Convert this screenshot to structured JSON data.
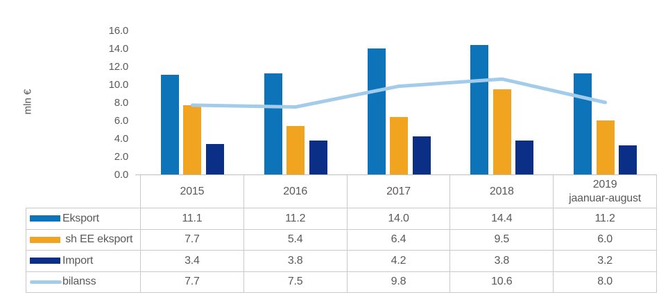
{
  "chart_data": {
    "type": "bar",
    "subtype": "grouped bars with line overlay",
    "title": "",
    "xlabel": "",
    "ylabel": "mln €",
    "ylim": [
      0,
      16
    ],
    "grid": false,
    "legend_position": "table-left",
    "y_ticks": [
      "16.0",
      "14.0",
      "12.0",
      "10.0",
      "8.0",
      "6.0",
      "4.0",
      "2.0",
      "0.0"
    ],
    "categories": [
      "2015",
      "2016",
      "2017",
      "2018",
      "2019\njaanuar-august"
    ],
    "series": [
      {
        "name": "Eksport",
        "type": "bar",
        "color": "#0e74ba",
        "values": [
          "11.1",
          "11.2",
          "14.0",
          "14.4",
          "11.2"
        ]
      },
      {
        "name": " sh EE eksport",
        "type": "bar",
        "color": "#f0a41f",
        "values": [
          "7.7",
          "5.4",
          "6.4",
          "9.5",
          "6.0"
        ]
      },
      {
        "name": "Import",
        "type": "bar",
        "color": "#0b2f87",
        "values": [
          "3.4",
          "3.8",
          "4.2",
          "3.8",
          "3.2"
        ]
      },
      {
        "name": "bilanss",
        "type": "line",
        "color": "#a3cbea",
        "values": [
          "7.7",
          "7.5",
          "9.8",
          "10.6",
          "8.0"
        ]
      }
    ]
  },
  "colors": {
    "eksport": "#0e74ba",
    "sh_ee_eksport": "#f0a41f",
    "import": "#0b2f87",
    "bilanss": "#a3cbea",
    "text": "#595959",
    "border": "#c9c9c9"
  }
}
